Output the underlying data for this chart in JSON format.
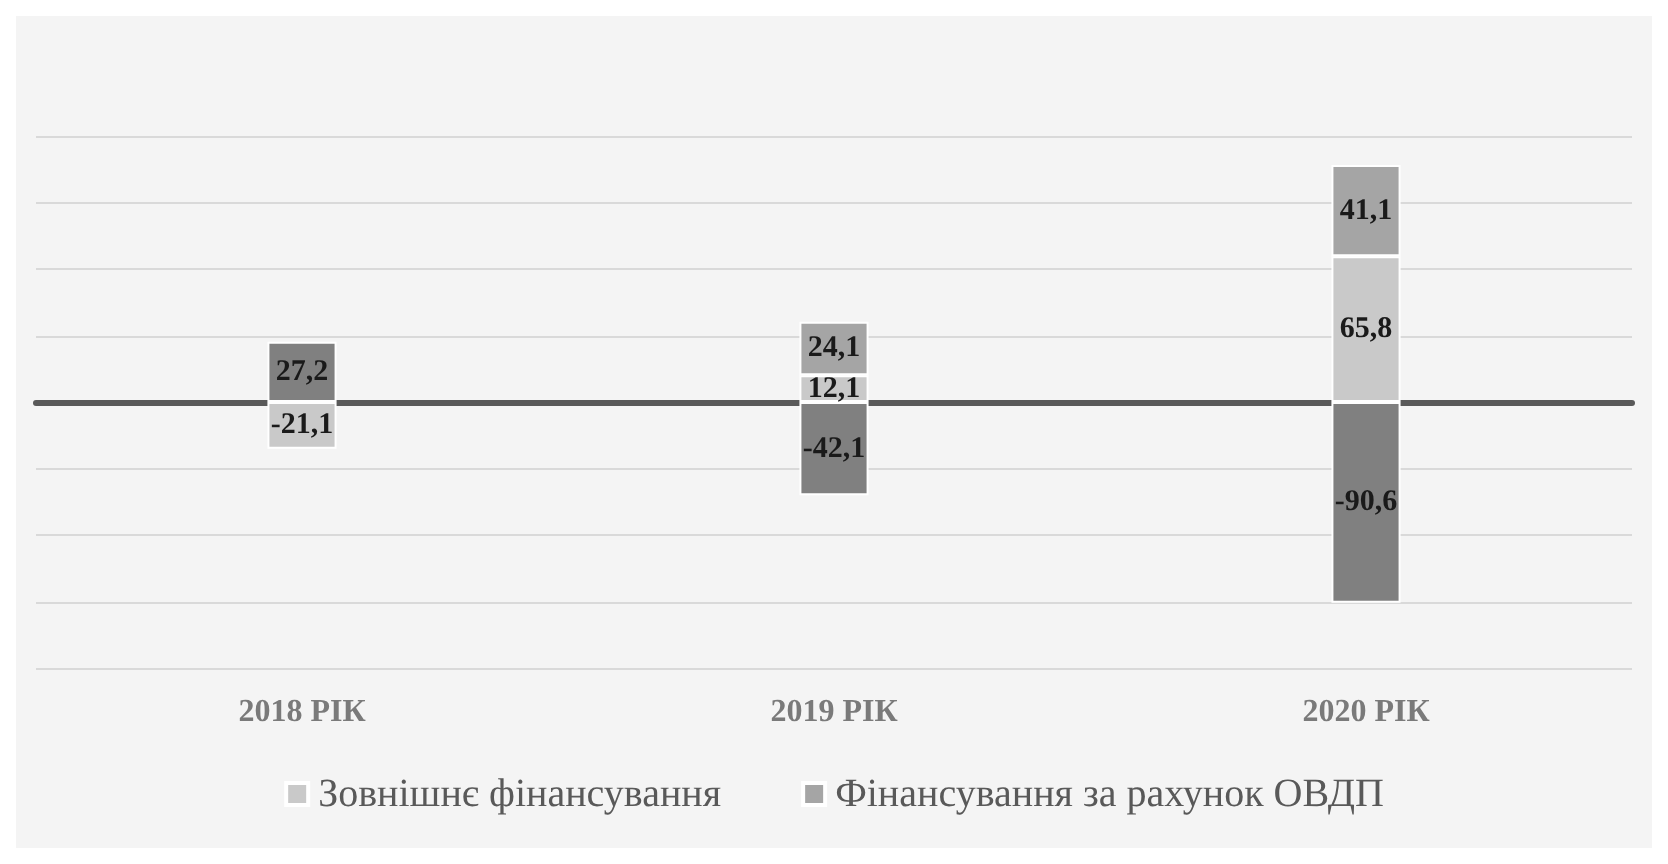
{
  "chart_data": {
    "type": "bar",
    "stacked": true,
    "grid": "y",
    "legend": "bottom",
    "categories": [
      "2018 РІК",
      "2019 РІК",
      "2020 РІК"
    ],
    "series": [
      {
        "name": "Зовнішнє фінансування",
        "color": "#c9c9c9",
        "values": [
          -21.1,
          12.1,
          65.8
        ],
        "value_labels": [
          "-21,1",
          "12,1",
          "65,8"
        ]
      },
      {
        "name": "Фінансування за рахунок ОВДП",
        "color": "#a5a5a5",
        "values": [
          null,
          24.1,
          41.1
        ],
        "value_labels": [
          null,
          "24,1",
          "41,1"
        ]
      },
      {
        "color": "#808080",
        "values": [
          27.2,
          -42.1,
          -90.6
        ],
        "value_labels": [
          "27,2",
          "-42,1",
          "-90,6"
        ]
      }
    ]
  }
}
